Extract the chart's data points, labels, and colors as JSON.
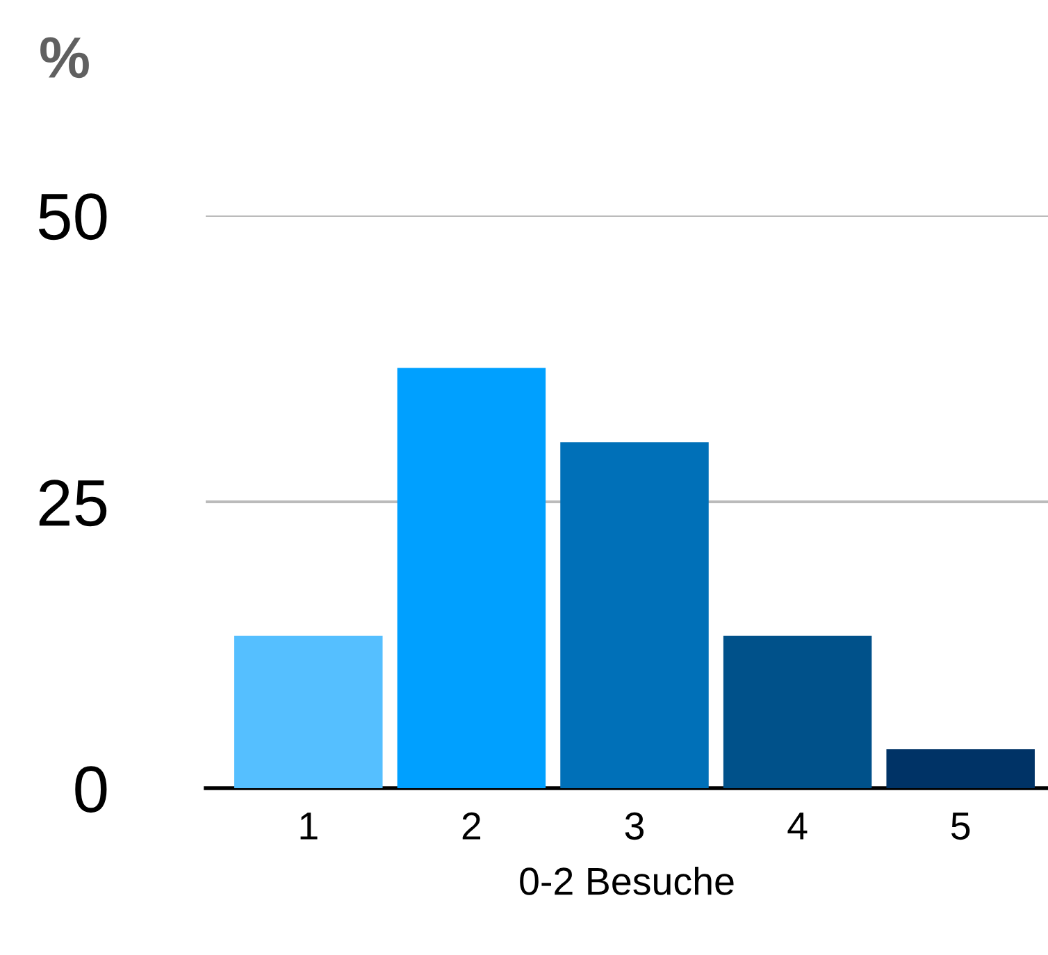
{
  "chart_data": {
    "type": "bar",
    "ylabel": "%",
    "xlabel": "0-2 Besuche",
    "categories": [
      "1",
      "2",
      "3",
      "4",
      "5"
    ],
    "values": [
      13.3,
      36.7,
      30.2,
      13.3,
      3.4
    ],
    "colors": [
      "#55bfff",
      "#00a0ff",
      "#0070b8",
      "#00518a",
      "#003366"
    ],
    "ylim": [
      0,
      50
    ],
    "yticks": [
      0,
      25,
      50
    ],
    "grid": "y",
    "legend": false
  }
}
